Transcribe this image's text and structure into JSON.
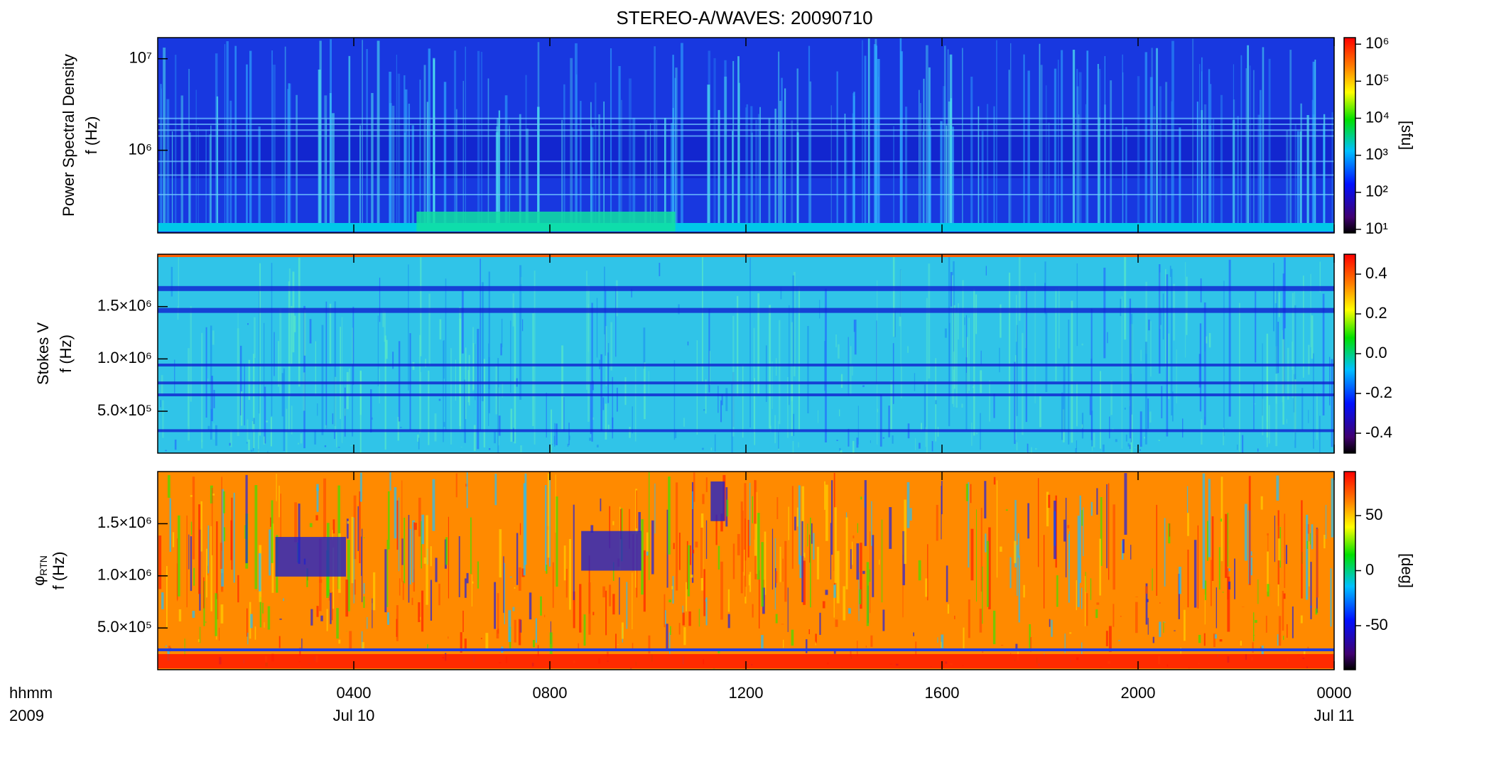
{
  "chart_data": [
    {
      "type": "heatmap",
      "title": "STEREO-A/WAVES: 20090710",
      "y_label_lines": [
        "Power Spectral Density",
        "f (Hz)"
      ],
      "ylog": true,
      "ylim": [
        125000,
        17000000
      ],
      "yticks": [
        {
          "value": 1000000,
          "label": "10⁶"
        },
        {
          "value": 10000000,
          "label": "10⁷"
        }
      ],
      "colorbar": {
        "label": "[sfu]",
        "log": true,
        "lim": [
          8,
          1500000
        ],
        "ticks": [
          {
            "value": 10,
            "label": "10¹"
          },
          {
            "value": 100,
            "label": "10²"
          },
          {
            "value": 1000,
            "label": "10³"
          },
          {
            "value": 10000,
            "label": "10⁴"
          },
          {
            "value": 100000,
            "label": "10⁵"
          },
          {
            "value": 1000000,
            "label": "10⁶"
          }
        ]
      }
    },
    {
      "type": "heatmap",
      "y_label_lines": [
        "Stokes V",
        "f (Hz)"
      ],
      "ylog": false,
      "ylim": [
        100000,
        2000000
      ],
      "yticks": [
        {
          "value": 500000,
          "label": "5.0×10⁵"
        },
        {
          "value": 1000000,
          "label": "1.0×10⁶"
        },
        {
          "value": 1500000,
          "label": "1.5×10⁶"
        }
      ],
      "colorbar": {
        "log": false,
        "lim": [
          -0.5,
          0.5
        ],
        "ticks": [
          -0.4,
          -0.2,
          {
            "value": 0,
            "label": "0.0"
          },
          0.2,
          0.4
        ]
      }
    },
    {
      "type": "heatmap",
      "y_label_symbol": "φ",
      "y_label_sub": "RTN",
      "y_label_lines": [
        "f (Hz)"
      ],
      "ylog": false,
      "ylim": [
        100000,
        2000000
      ],
      "yticks": [
        {
          "value": 500000,
          "label": "5.0×10⁵"
        },
        {
          "value": 1000000,
          "label": "1.0×10⁶"
        },
        {
          "value": 1500000,
          "label": "1.5×10⁶"
        }
      ],
      "colorbar": {
        "label": "[deg]",
        "log": false,
        "lim": [
          -90,
          90
        ],
        "ticks": [
          -50,
          0,
          50
        ]
      },
      "xlim": [
        0,
        24
      ],
      "xticks": [
        {
          "value": 4,
          "label": "0400"
        },
        {
          "value": 8,
          "label": "0800"
        },
        {
          "value": 12,
          "label": "1200"
        },
        {
          "value": 16,
          "label": "1600"
        },
        {
          "value": 20,
          "label": "2000"
        },
        {
          "value": 24,
          "label": "0000"
        }
      ],
      "date_labels": [
        {
          "value": 4,
          "label": "Jul 10"
        },
        {
          "value": 24,
          "label": "Jul 11"
        }
      ],
      "x_label_lines": [
        "hhmm",
        "2009"
      ]
    }
  ]
}
